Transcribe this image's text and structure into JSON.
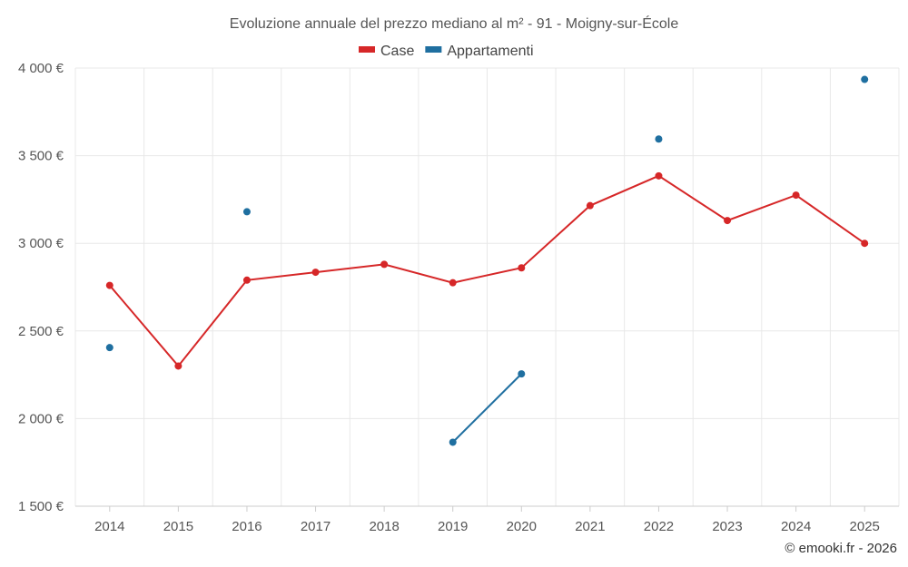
{
  "chart_data": {
    "type": "line",
    "title": "Evoluzione annuale del prezzo mediano al m² - 91 - Moigny-sur-École",
    "categories": [
      "2014",
      "2015",
      "2016",
      "2017",
      "2018",
      "2019",
      "2020",
      "2021",
      "2022",
      "2023",
      "2024",
      "2025"
    ],
    "series": [
      {
        "name": "Case",
        "color": "#d62728",
        "values": [
          2760,
          2300,
          2790,
          2835,
          2880,
          2775,
          2860,
          3215,
          3385,
          3130,
          3275,
          3000
        ]
      },
      {
        "name": "Appartamenti",
        "color": "#1f6fa0",
        "values": [
          2405,
          null,
          3180,
          null,
          null,
          1865,
          2255,
          null,
          3595,
          null,
          null,
          3935
        ]
      }
    ],
    "ylim": [
      1500,
      4000
    ],
    "yticks": [
      1500,
      2000,
      2500,
      3000,
      3500,
      4000
    ],
    "ytick_labels": [
      "1 500 €",
      "2 000 €",
      "2 500 €",
      "3 000 €",
      "3 500 €",
      "4 000 €"
    ],
    "xlabel": "",
    "ylabel": "",
    "legend_position": "top-center",
    "grid": true
  },
  "credit": "© emooki.fr - 2026"
}
